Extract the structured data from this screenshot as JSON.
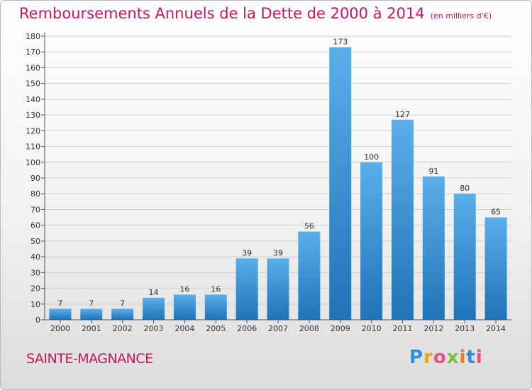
{
  "header": {
    "title": "Remboursements Annuels de la Dette de 2000 à 2014",
    "subtitle": "(en milliers d'€)"
  },
  "footer": {
    "commune": "SAINTE-MAGNANCE",
    "logo_text": "Proxiti"
  },
  "colors": {
    "title": "#c2185b",
    "bar_top": "#5aaeea",
    "bar_bottom": "#1f74b8"
  },
  "chart_data": {
    "type": "bar",
    "title": "Remboursements Annuels de la Dette de 2000 à 2014",
    "subtitle": "(en milliers d'€)",
    "xlabel": "",
    "ylabel": "",
    "categories": [
      "2000",
      "2001",
      "2002",
      "2003",
      "2004",
      "2005",
      "2006",
      "2007",
      "2008",
      "2009",
      "2010",
      "2011",
      "2012",
      "2013",
      "2014"
    ],
    "values": [
      7,
      7,
      7,
      14,
      16,
      16,
      39,
      39,
      56,
      173,
      100,
      127,
      91,
      80,
      65
    ],
    "ylim": [
      0,
      180
    ],
    "yticks": [
      0,
      10,
      20,
      30,
      40,
      50,
      60,
      70,
      80,
      90,
      100,
      110,
      120,
      130,
      140,
      150,
      160,
      170,
      180
    ],
    "grid": true,
    "data_labels": true
  }
}
